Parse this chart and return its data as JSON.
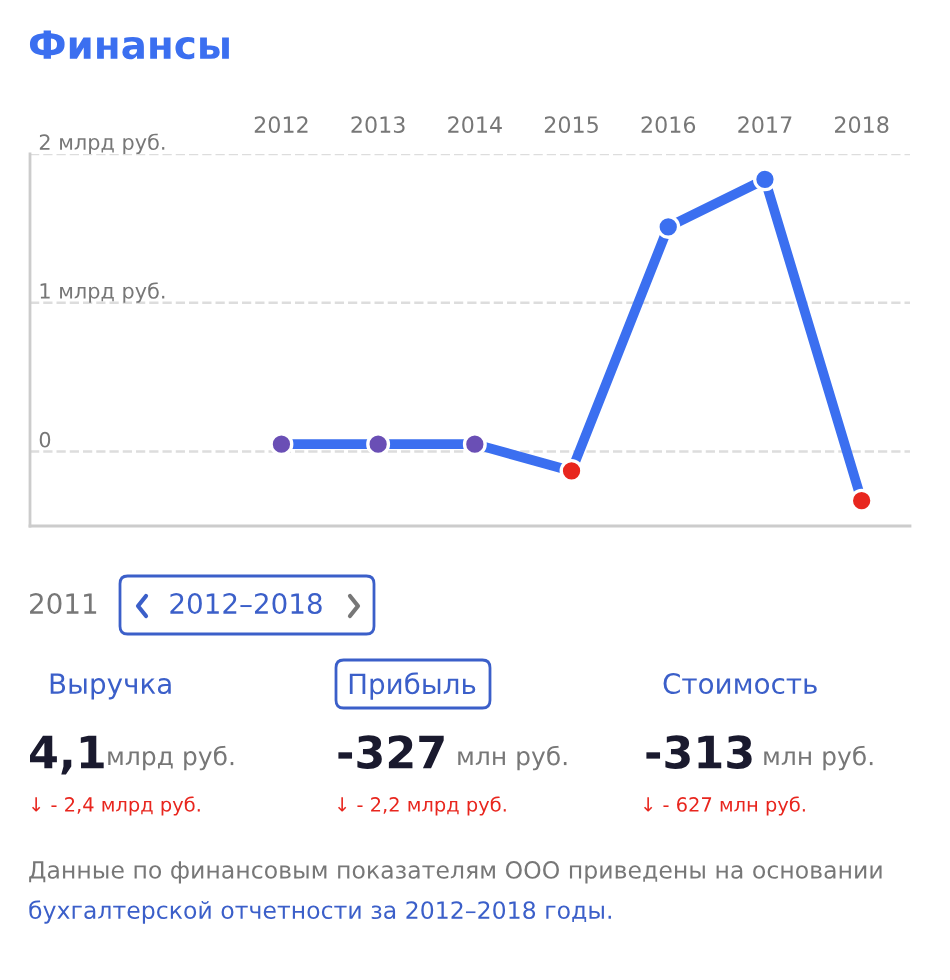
{
  "chart_data": {
    "type": "line",
    "title": "Финансы",
    "categories": [
      "2012",
      "2013",
      "2014",
      "2015",
      "2016",
      "2017",
      "2018"
    ],
    "series": [
      {
        "color": "#3b6ff0",
        "colors": [
          "#6a4fb5",
          "#6a4fb5",
          "#6a4fb5",
          "#e8261e",
          "#3b6ff0",
          "#3b6ff0",
          "#e8261e"
        ],
        "values": [
          0.05,
          0.05,
          0.05,
          -0.13,
          1.51,
          1.83,
          -0.33
        ]
      }
    ],
    "ylim": [
      -0.5,
      2
    ],
    "yticks": [
      {
        "value": 0,
        "label": "0"
      },
      {
        "value": 1,
        "label": "1 млрд руб."
      },
      {
        "value": 2,
        "label": "2 млрд руб."
      }
    ],
    "grid": "y",
    "marker": "circle",
    "line_style": "solid",
    "annotations": [
      "2011",
      "2012–2018",
      "Выручка",
      "Прибыль",
      "Стоимость",
      "4,1",
      "млрд руб.",
      "-327",
      "млн руб.",
      "-313",
      "млн руб.",
      "↓ - 2,4 млрд руб.",
      "↓ - 2,2 млрд руб.",
      "↓ - 627 млн руб.",
      "Данные по финансовым показателям ООО приведены на основании",
      "бухгалтерской отчетности за 2012–2018 годы."
    ]
  }
}
